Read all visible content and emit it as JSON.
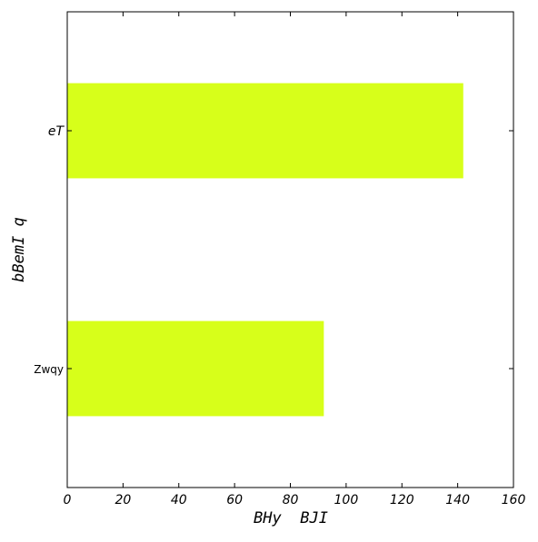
{
  "chart_data": {
    "type": "bar",
    "orientation": "horizontal",
    "categories": [
      "eT",
      "Zwqy"
    ],
    "values": [
      142,
      92
    ],
    "xlabel": "BHy  BJI",
    "ylabel": "bBemI q",
    "xlim": [
      0,
      160
    ],
    "xticks": [
      0,
      20,
      40,
      60,
      80,
      100,
      120,
      140,
      160
    ],
    "grid": false,
    "legend": "none",
    "bar_color": "#d7ff1a"
  }
}
